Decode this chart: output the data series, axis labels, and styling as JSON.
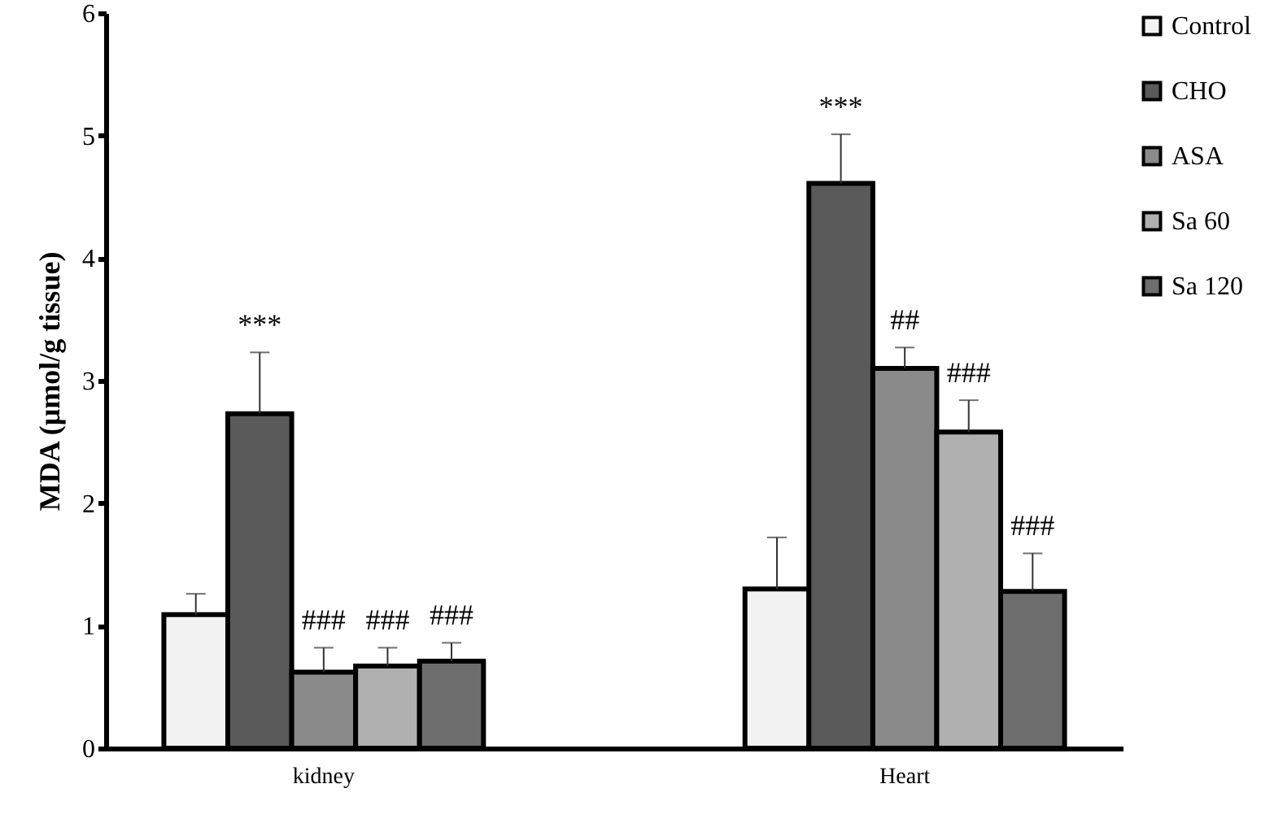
{
  "chart_data": {
    "type": "bar",
    "ylabel": "MDA (µmol/g tissue)",
    "categories": [
      "kidney",
      "Heart"
    ],
    "ylim": [
      0,
      6
    ],
    "yticks": [
      0,
      1,
      2,
      3,
      4,
      5,
      6
    ],
    "grid": false,
    "legend": "right",
    "series": [
      {
        "name": "Control",
        "color": "#f2f2f2",
        "values": [
          1.09,
          1.3
        ],
        "errors": [
          [
            1.09,
            1.26
          ],
          [
            1.3,
            1.72
          ]
        ],
        "value_labels": [
          null,
          null
        ]
      },
      {
        "name": "CHO",
        "color": "#5a5a5a",
        "values": [
          2.73,
          4.61
        ],
        "errors": [
          [
            2.73,
            3.23
          ],
          [
            4.61,
            5.01
          ]
        ],
        "value_labels": [
          "***",
          "***"
        ]
      },
      {
        "name": "ASA",
        "color": "#8a8a8a",
        "values": [
          0.62,
          3.1
        ],
        "errors": [
          [
            0.62,
            0.82
          ],
          [
            3.1,
            3.27
          ]
        ],
        "value_labels": [
          "###",
          "##"
        ]
      },
      {
        "name": "Sa 60",
        "color": "#b0b0b0",
        "values": [
          0.67,
          2.58
        ],
        "errors": [
          [
            0.67,
            0.82
          ],
          [
            2.58,
            2.84
          ]
        ],
        "value_labels": [
          "###",
          "###"
        ]
      },
      {
        "name": "Sa 120",
        "color": "#6e6e6e",
        "values": [
          0.71,
          1.28
        ],
        "errors": [
          [
            0.71,
            0.86
          ],
          [
            1.28,
            1.59
          ]
        ],
        "value_labels": [
          "###",
          "###"
        ]
      }
    ]
  }
}
